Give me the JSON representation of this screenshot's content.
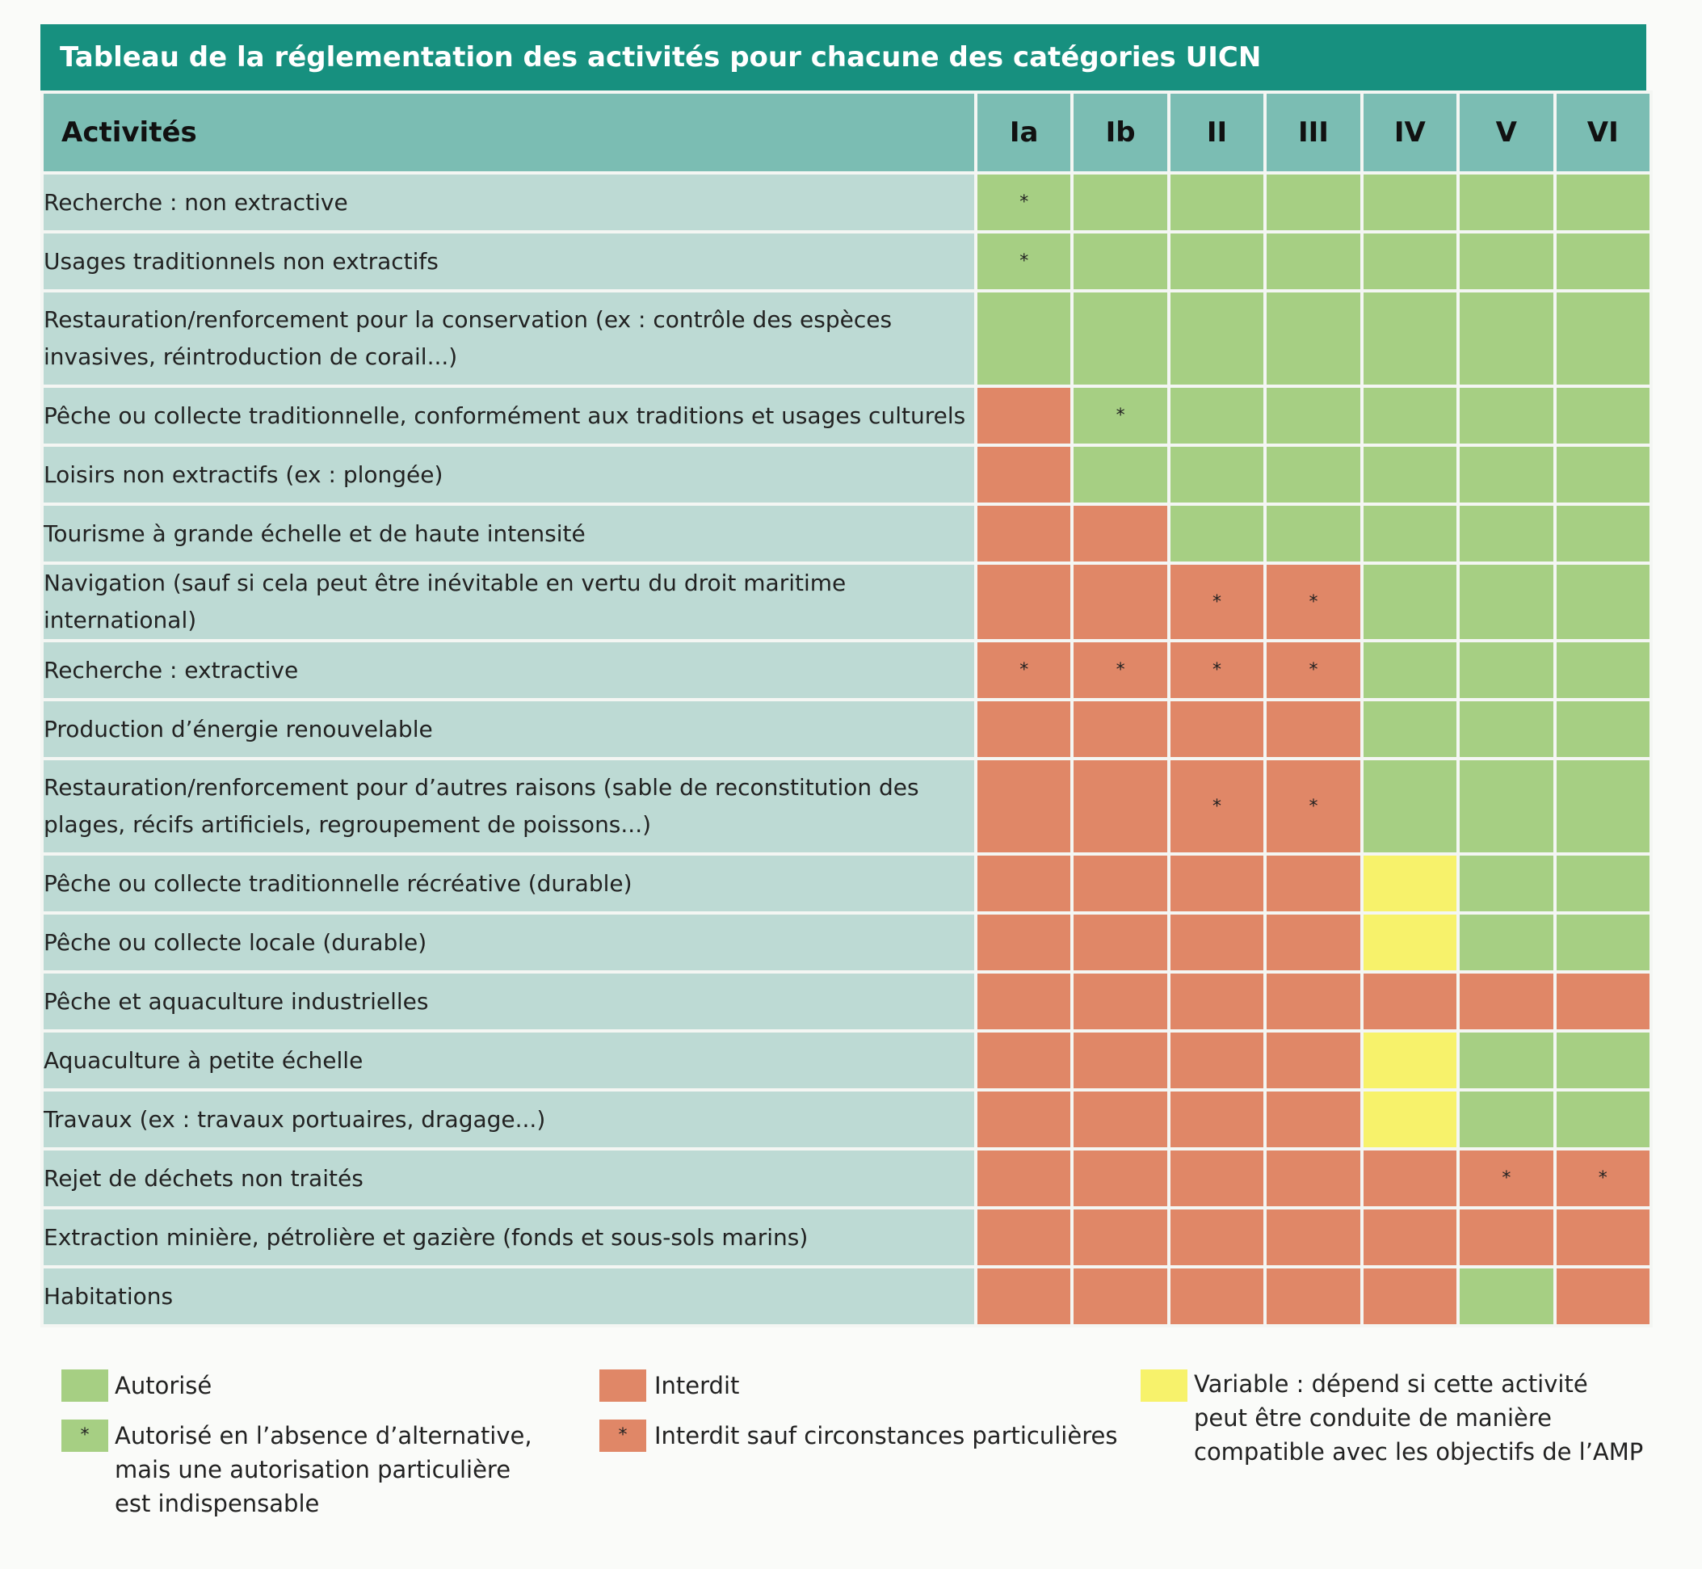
{
  "title": "Tableau de la réglementation des activités pour chacune des catégories UICN",
  "header": {
    "activities": "Activités",
    "categories": [
      "Ia",
      "Ib",
      "II",
      "III",
      "IV",
      "V",
      "VI"
    ]
  },
  "rows": [
    {
      "activity": "Recherche : non extractive",
      "cells": [
        "G*",
        "G",
        "G",
        "G",
        "G",
        "G",
        "G"
      ]
    },
    {
      "activity": "Usages traditionnels non extractifs",
      "cells": [
        "G*",
        "G",
        "G",
        "G",
        "G",
        "G",
        "G"
      ]
    },
    {
      "activity": "Restauration/renforcement pour la conservation (ex : contrôle des espèces invasives, réintroduction de corail...)",
      "cells": [
        "G",
        "G",
        "G",
        "G",
        "G",
        "G",
        "G"
      ]
    },
    {
      "activity": "Pêche ou collecte traditionnelle, conformément aux traditions et usages culturels",
      "cells": [
        "R",
        "G*",
        "G",
        "G",
        "G",
        "G",
        "G"
      ]
    },
    {
      "activity": "Loisirs non extractifs (ex : plongée)",
      "cells": [
        "R",
        "G",
        "G",
        "G",
        "G",
        "G",
        "G"
      ]
    },
    {
      "activity": "Tourisme à grande échelle et de haute intensité",
      "cells": [
        "R",
        "R",
        "G",
        "G",
        "G",
        "G",
        "G"
      ]
    },
    {
      "activity": "Navigation (sauf si cela peut être inévitable en vertu du droit maritime international)",
      "cells": [
        "R",
        "R",
        "R*",
        "R*",
        "G",
        "G",
        "G"
      ]
    },
    {
      "activity": "Recherche : extractive",
      "cells": [
        "R*",
        "R*",
        "R*",
        "R*",
        "G",
        "G",
        "G"
      ]
    },
    {
      "activity": "Production d’énergie renouvelable",
      "cells": [
        "R",
        "R",
        "R",
        "R",
        "G",
        "G",
        "G"
      ]
    },
    {
      "activity": "Restauration/renforcement pour d’autres raisons (sable de reconstitution des plages, récifs artificiels, regroupement de poissons...)",
      "cells": [
        "R",
        "R",
        "R*",
        "R*",
        "G",
        "G",
        "G"
      ]
    },
    {
      "activity": "Pêche ou collecte traditionnelle récréative (durable)",
      "cells": [
        "R",
        "R",
        "R",
        "R",
        "Y",
        "G",
        "G"
      ]
    },
    {
      "activity": "Pêche ou collecte locale (durable)",
      "cells": [
        "R",
        "R",
        "R",
        "R",
        "Y",
        "G",
        "G"
      ]
    },
    {
      "activity": "Pêche et aquaculture industrielles",
      "cells": [
        "R",
        "R",
        "R",
        "R",
        "R",
        "R",
        "R"
      ]
    },
    {
      "activity": "Aquaculture à petite échelle",
      "cells": [
        "R",
        "R",
        "R",
        "R",
        "Y",
        "G",
        "G"
      ]
    },
    {
      "activity": "Travaux (ex : travaux portuaires, dragage...)",
      "cells": [
        "R",
        "R",
        "R",
        "R",
        "Y",
        "G",
        "G"
      ]
    },
    {
      "activity": "Rejet de déchets non traités",
      "cells": [
        "R",
        "R",
        "R",
        "R",
        "R",
        "R*",
        "R*"
      ]
    },
    {
      "activity": "Extraction minière, pétrolière et gazière (fonds et sous-sols marins)",
      "cells": [
        "R",
        "R",
        "R",
        "R",
        "R",
        "R",
        "R"
      ]
    },
    {
      "activity": "Habitations",
      "cells": [
        "R",
        "R",
        "R",
        "R",
        "R",
        "G",
        "R"
      ]
    }
  ],
  "legend": {
    "authorized": "Autorisé",
    "authorized_star": "Autorisé en l’absence d’alternative, mais une autorisation particulière est indispensable",
    "forbidden": "Interdit",
    "forbidden_star": "Interdit sauf circonstances particulières",
    "variable": "Variable : dépend si cette activité peut être conduite de manière compatible avec les objectifs de l’AMP",
    "star_symbol": "*"
  },
  "colors": {
    "title_bg": "#17907f",
    "header_bg": "#7bbdb3",
    "activity_bg": "#bddad4",
    "authorized": "#a6cf83",
    "forbidden": "#e08767",
    "variable": "#f7f26b"
  }
}
